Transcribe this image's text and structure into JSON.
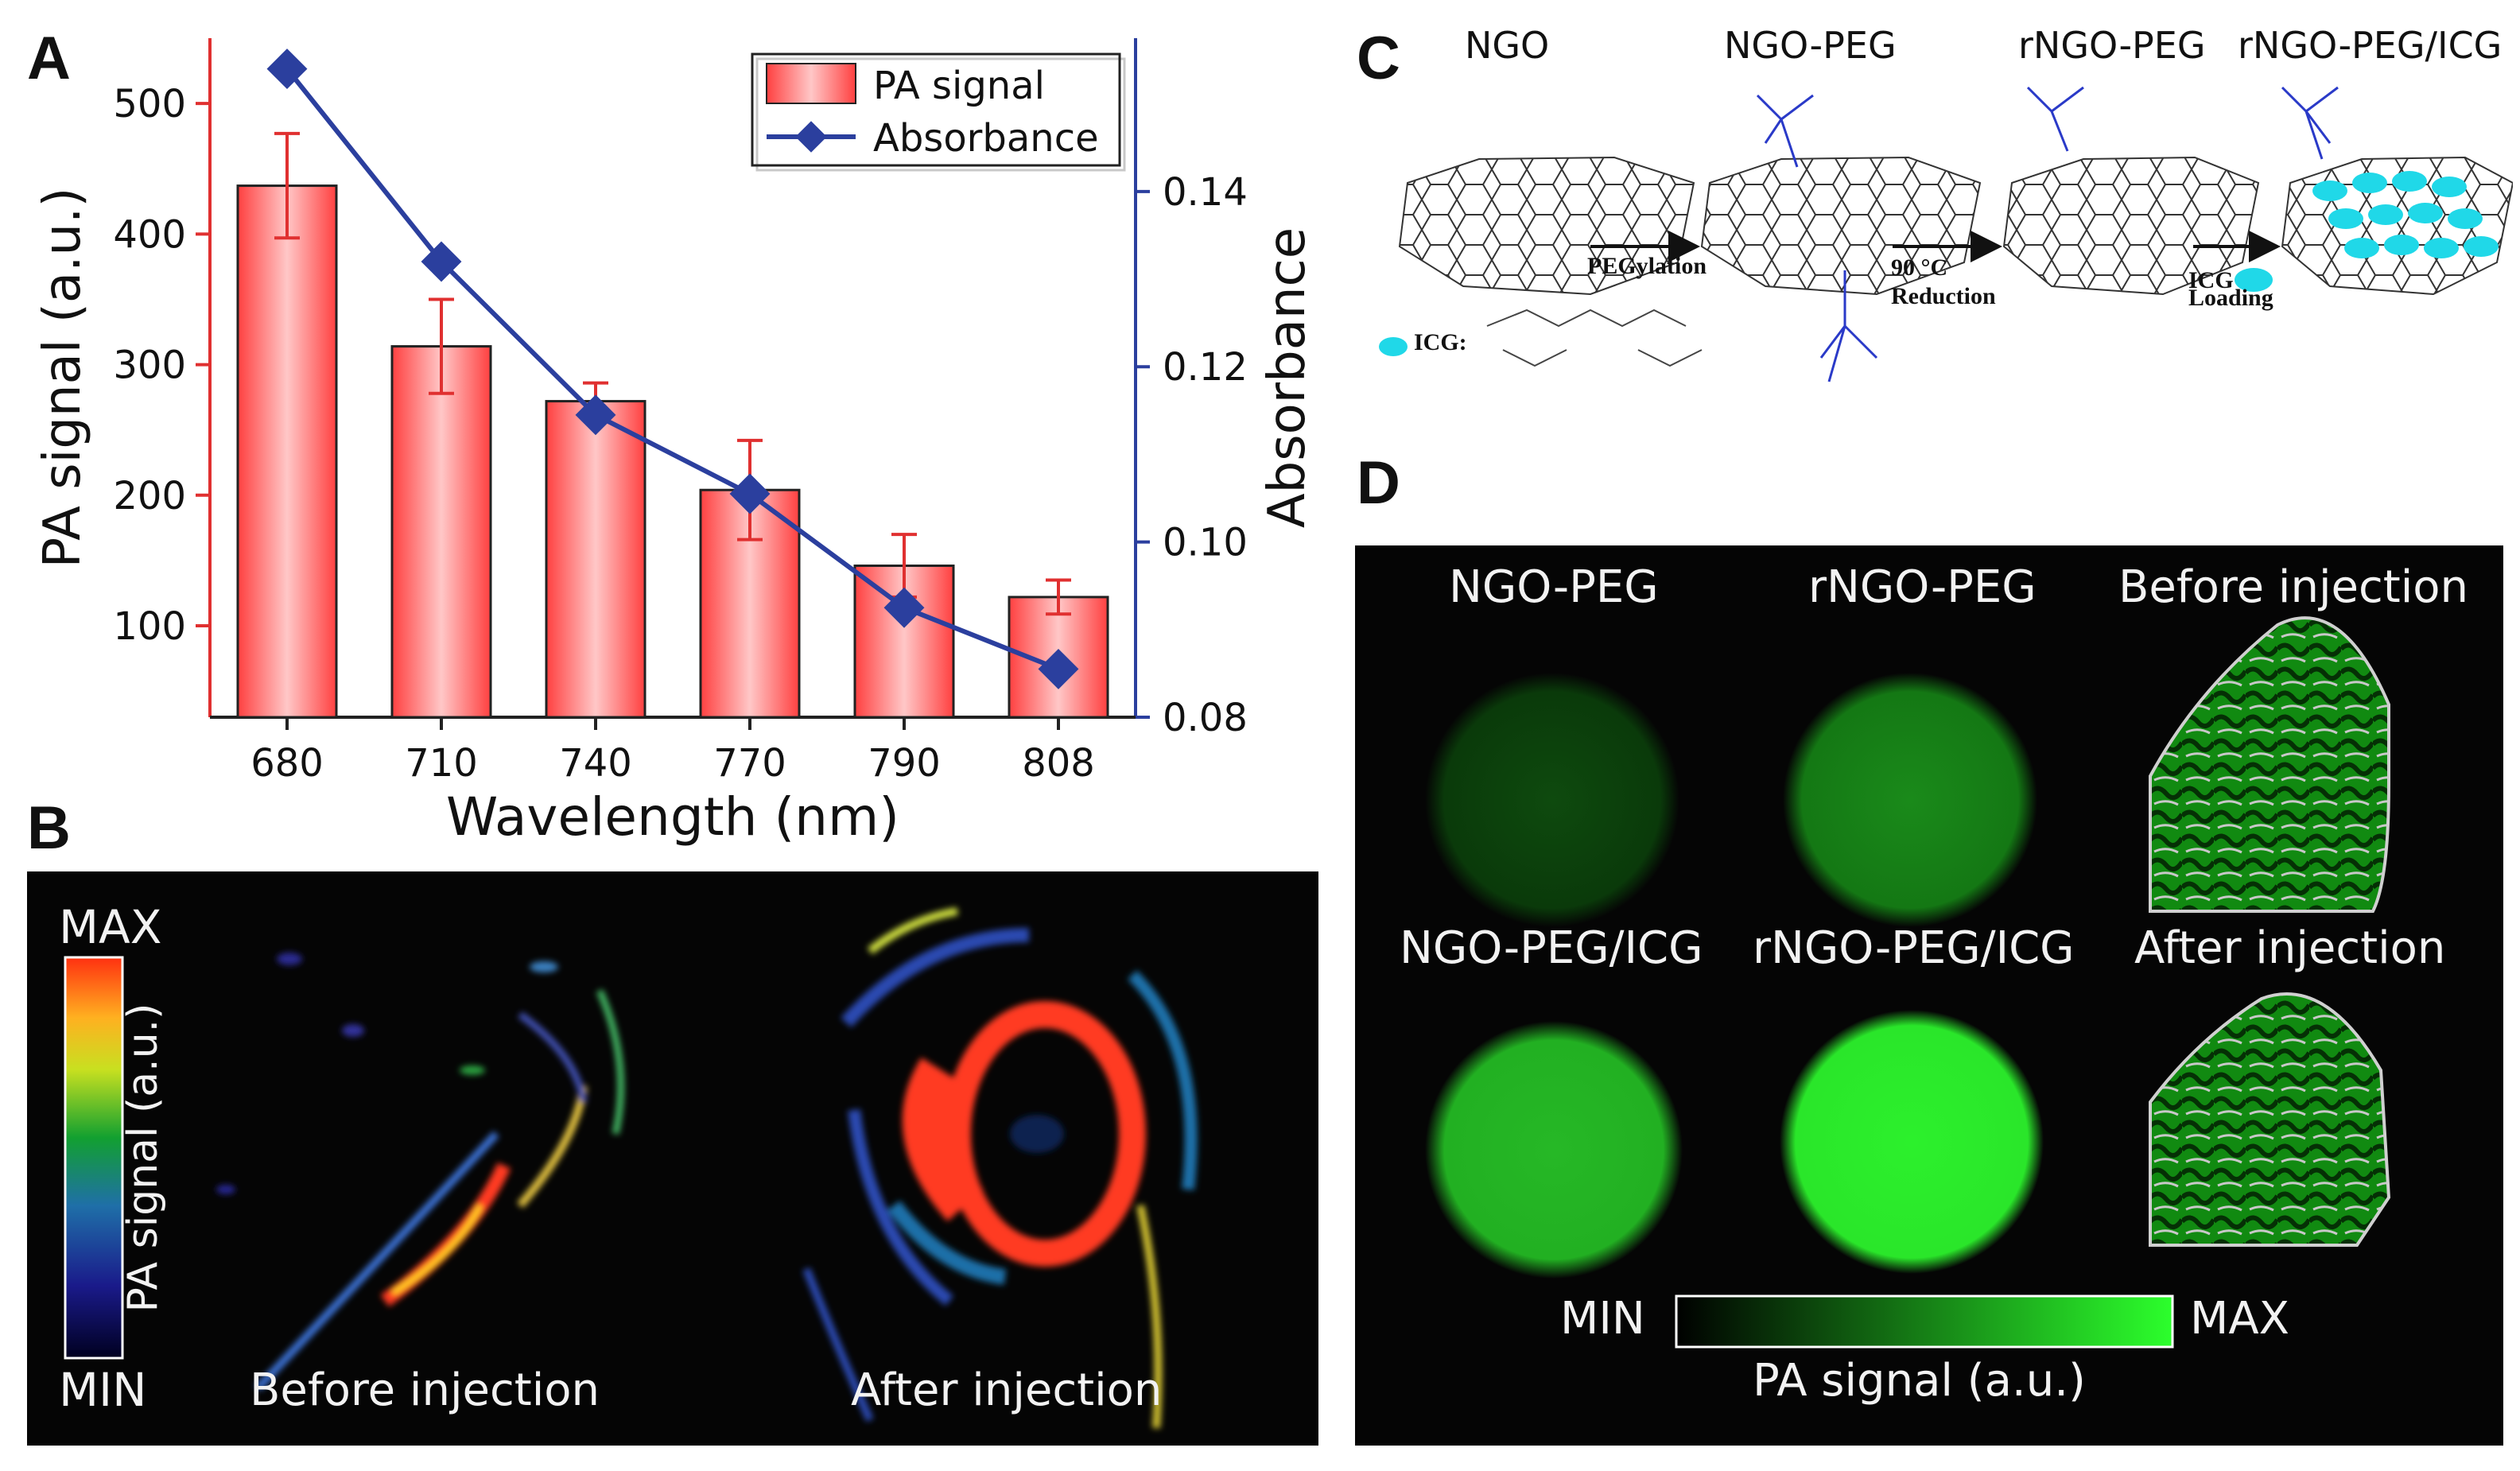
{
  "panels": {
    "a": "A",
    "b": "B",
    "c": "C",
    "d": "D"
  },
  "chart_data": {
    "type": "bar+line",
    "categories": [
      "680",
      "710",
      "740",
      "770",
      "790",
      "808"
    ],
    "series": [
      {
        "name": "PA signal",
        "axis": "left",
        "kind": "bar",
        "values": [
          437,
          314,
          272,
          204,
          146,
          122
        ],
        "errors": [
          40,
          36,
          14,
          38,
          24,
          13
        ]
      },
      {
        "name": "Absorbance",
        "axis": "right",
        "kind": "line",
        "values": [
          0.154,
          0.132,
          0.1145,
          0.1055,
          0.0925,
          0.0855
        ]
      }
    ],
    "xlabel": "Wavelength (nm)",
    "ylabel": "PA signal (a.u.)",
    "y2label": "Absorbance",
    "ylim": [
      30,
      550
    ],
    "y2lim": [
      0.08,
      0.1575
    ],
    "yticks": [
      100,
      200,
      300,
      400,
      500
    ],
    "y2ticks": [
      "0.08",
      "0.10",
      "0.12",
      "0.14"
    ],
    "legend": [
      "PA signal",
      "Absorbance"
    ],
    "legend_position": "top-right"
  },
  "panel_b": {
    "scale_max": "MAX",
    "scale_min": "MIN",
    "scale_label": "PA signal (a.u.)",
    "before": "Before injection",
    "after": "After injection"
  },
  "panel_c": {
    "stages": [
      "NGO",
      "NGO-PEG",
      "rNGO-PEG",
      "rNGO-PEG/ICG"
    ],
    "step1": "PEGylation",
    "step2_temp": "90 °C",
    "step2": "Reduction",
    "step3_top": "ICG",
    "step3": "Loading",
    "icg_key": "ICG:"
  },
  "panel_d": {
    "labels": [
      "NGO-PEG",
      "rNGO-PEG",
      "Before injection",
      "NGO-PEG/ICG",
      "rNGO-PEG/ICG",
      "After injection"
    ],
    "scale_min": "MIN",
    "scale_max": "MAX",
    "scale_label": "PA signal (a.u.)"
  },
  "colors": {
    "bar": "#ff3b3b",
    "line": "#2b3f9e",
    "left_axis": "#e03030",
    "right_axis": "#2b3f9e",
    "green": "#2cff2c"
  }
}
